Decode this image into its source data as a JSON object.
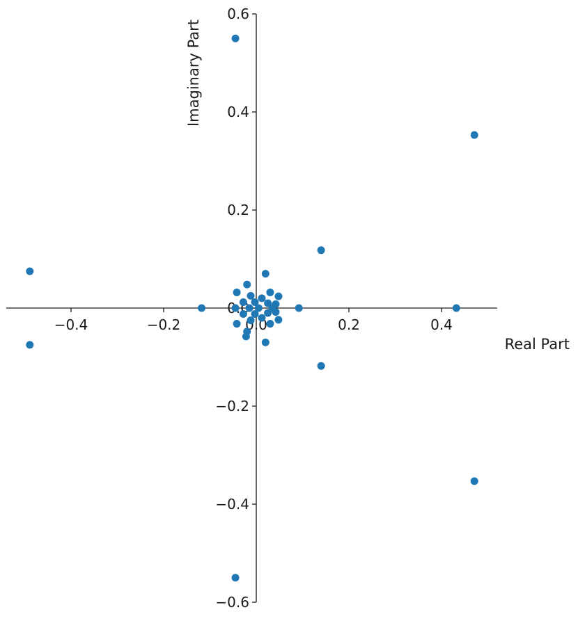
{
  "chart_data": {
    "type": "scatter",
    "title": "",
    "xlabel": "Real Part",
    "ylabel": "Imaginary Part",
    "xlim": [
      -0.54,
      0.52
    ],
    "ylim": [
      -0.6,
      0.6
    ],
    "xticks": [
      -0.4,
      -0.2,
      0.0,
      0.2,
      0.4
    ],
    "xtick_labels": [
      "−0.4",
      "−0.2",
      "0.0",
      "0.2",
      "0.4"
    ],
    "yticks": [
      -0.6,
      -0.4,
      -0.2,
      0.0,
      0.2,
      0.4,
      0.6
    ],
    "ytick_labels": [
      "−0.6",
      "−0.4",
      "−0.2",
      "0.0",
      "0.2",
      "0.4",
      "0.6"
    ],
    "spines": "centered",
    "grid": false,
    "marker_color": "#1f77b4",
    "points": [
      {
        "x": -0.045,
        "y": 0.55
      },
      {
        "x": -0.045,
        "y": -0.55
      },
      {
        "x": 0.471,
        "y": 0.353
      },
      {
        "x": 0.471,
        "y": -0.353
      },
      {
        "x": -0.489,
        "y": 0.075
      },
      {
        "x": -0.489,
        "y": -0.075
      },
      {
        "x": 0.432,
        "y": 0.0
      },
      {
        "x": 0.14,
        "y": 0.118
      },
      {
        "x": 0.14,
        "y": -0.118
      },
      {
        "x": -0.118,
        "y": 0.0
      },
      {
        "x": 0.092,
        "y": 0.0
      },
      {
        "x": 0.02,
        "y": 0.07
      },
      {
        "x": 0.02,
        "y": -0.07
      },
      {
        "x": -0.02,
        "y": 0.048
      },
      {
        "x": -0.02,
        "y": -0.048
      },
      {
        "x": -0.042,
        "y": 0.032
      },
      {
        "x": -0.042,
        "y": -0.032
      },
      {
        "x": 0.03,
        "y": 0.032
      },
      {
        "x": 0.03,
        "y": -0.032
      },
      {
        "x": 0.048,
        "y": 0.024
      },
      {
        "x": 0.048,
        "y": -0.024
      },
      {
        "x": 0.042,
        "y": 0.008
      },
      {
        "x": 0.042,
        "y": -0.008
      },
      {
        "x": -0.012,
        "y": 0.025
      },
      {
        "x": -0.012,
        "y": -0.025
      },
      {
        "x": 0.012,
        "y": 0.02
      },
      {
        "x": 0.012,
        "y": -0.02
      },
      {
        "x": -0.028,
        "y": 0.012
      },
      {
        "x": -0.028,
        "y": -0.012
      },
      {
        "x": 0.025,
        "y": 0.01
      },
      {
        "x": 0.025,
        "y": -0.01
      },
      {
        "x": -0.003,
        "y": 0.012
      },
      {
        "x": -0.003,
        "y": -0.012
      },
      {
        "x": 0.005,
        "y": 0.0
      },
      {
        "x": -0.015,
        "y": 0.0
      },
      {
        "x": -0.045,
        "y": 0.0
      },
      {
        "x": 0.035,
        "y": 0.0
      },
      {
        "x": -0.022,
        "y": -0.058
      }
    ]
  }
}
